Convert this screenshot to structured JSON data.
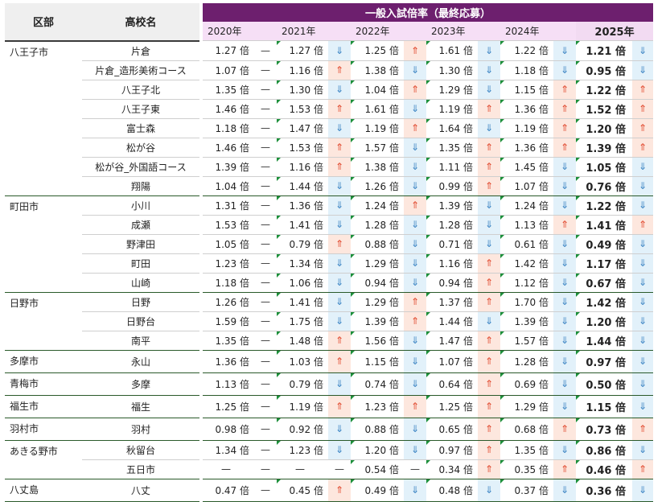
{
  "header": {
    "district": "区部",
    "school": "高校名",
    "banner": "一般入試倍率（最終応募）",
    "years": [
      "2020年",
      "2021年",
      "2022年",
      "2023年",
      "2024年",
      "2025年"
    ]
  },
  "rows": [
    {
      "district": "八王子市",
      "school": "片倉",
      "vals": [
        "1.27 倍",
        "1.27 倍",
        "1.25 倍",
        "1.61 倍",
        "1.22 倍",
        "1.21 倍"
      ],
      "arrows": [
        "—",
        "⇓",
        "⇑",
        "⇓",
        "⇓"
      ]
    },
    {
      "district": "",
      "school": "片倉_造形美術コース",
      "vals": [
        "1.07 倍",
        "1.16 倍",
        "1.38 倍",
        "1.30 倍",
        "1.18 倍",
        "0.95 倍"
      ],
      "arrows": [
        "—",
        "⇑",
        "⇓",
        "⇓",
        "⇓"
      ]
    },
    {
      "district": "",
      "school": "八王子北",
      "vals": [
        "1.35 倍",
        "1.30 倍",
        "1.04 倍",
        "1.29 倍",
        "1.15 倍",
        "1.22 倍"
      ],
      "arrows": [
        "—",
        "⇓",
        "⇑",
        "⇓",
        "⇑"
      ]
    },
    {
      "district": "",
      "school": "八王子東",
      "vals": [
        "1.46 倍",
        "1.53 倍",
        "1.61 倍",
        "1.19 倍",
        "1.36 倍",
        "1.52 倍"
      ],
      "arrows": [
        "—",
        "⇑",
        "⇓",
        "⇑",
        "⇑"
      ]
    },
    {
      "district": "",
      "school": "富士森",
      "vals": [
        "1.18 倍",
        "1.47 倍",
        "1.19 倍",
        "1.64 倍",
        "1.19 倍",
        "1.20 倍"
      ],
      "arrows": [
        "—",
        "⇓",
        "⇑",
        "⇓",
        "⇑"
      ]
    },
    {
      "district": "",
      "school": "松が谷",
      "vals": [
        "1.46 倍",
        "1.53 倍",
        "1.57 倍",
        "1.35 倍",
        "1.36 倍",
        "1.39 倍"
      ],
      "arrows": [
        "—",
        "⇑",
        "⇓",
        "⇑",
        "⇑"
      ]
    },
    {
      "district": "",
      "school": "松が谷_外国語コース",
      "vals": [
        "1.39 倍",
        "1.16 倍",
        "1.38 倍",
        "1.11 倍",
        "1.45 倍",
        "1.05 倍"
      ],
      "arrows": [
        "—",
        "⇑",
        "⇓",
        "⇑",
        "⇓"
      ]
    },
    {
      "district": "",
      "school": "翔陽",
      "vals": [
        "1.04 倍",
        "1.44 倍",
        "1.26 倍",
        "0.99 倍",
        "1.07 倍",
        "0.76 倍"
      ],
      "arrows": [
        "—",
        "⇓",
        "⇓",
        "⇑",
        "⇓"
      ]
    },
    {
      "district": "町田市",
      "school": "小川",
      "vals": [
        "1.31 倍",
        "1.36 倍",
        "1.24 倍",
        "1.39 倍",
        "1.24 倍",
        "1.22 倍"
      ],
      "arrows": [
        "—",
        "⇓",
        "⇑",
        "⇓",
        "⇓"
      ]
    },
    {
      "district": "",
      "school": "成瀬",
      "vals": [
        "1.53 倍",
        "1.41 倍",
        "1.28 倍",
        "1.28 倍",
        "1.13 倍",
        "1.41 倍"
      ],
      "arrows": [
        "—",
        "⇓",
        "⇓",
        "⇓",
        "⇑"
      ]
    },
    {
      "district": "",
      "school": "野津田",
      "vals": [
        "1.05 倍",
        "0.79 倍",
        "0.88 倍",
        "0.71 倍",
        "0.61 倍",
        "0.49 倍"
      ],
      "arrows": [
        "—",
        "⇑",
        "⇓",
        "⇓",
        "⇓"
      ]
    },
    {
      "district": "",
      "school": "町田",
      "vals": [
        "1.23 倍",
        "1.34 倍",
        "1.29 倍",
        "1.16 倍",
        "1.42 倍",
        "1.17 倍"
      ],
      "arrows": [
        "—",
        "⇓",
        "⇓",
        "⇑",
        "⇓"
      ]
    },
    {
      "district": "",
      "school": "山崎",
      "vals": [
        "1.18 倍",
        "1.06 倍",
        "0.94 倍",
        "0.94 倍",
        "1.12 倍",
        "0.67 倍"
      ],
      "arrows": [
        "—",
        "⇓",
        "⇓",
        "⇑",
        "⇓"
      ]
    },
    {
      "district": "日野市",
      "school": "日野",
      "vals": [
        "1.26 倍",
        "1.41 倍",
        "1.29 倍",
        "1.37 倍",
        "1.70 倍",
        "1.42 倍"
      ],
      "arrows": [
        "—",
        "⇓",
        "⇑",
        "⇑",
        "⇓"
      ]
    },
    {
      "district": "",
      "school": "日野台",
      "vals": [
        "1.59 倍",
        "1.75 倍",
        "1.39 倍",
        "1.44 倍",
        "1.39 倍",
        "1.20 倍"
      ],
      "arrows": [
        "—",
        "⇓",
        "⇑",
        "⇓",
        "⇓"
      ]
    },
    {
      "district": "",
      "school": "南平",
      "vals": [
        "1.35 倍",
        "1.48 倍",
        "1.56 倍",
        "1.47 倍",
        "1.57 倍",
        "1.44 倍"
      ],
      "arrows": [
        "—",
        "⇑",
        "⇓",
        "⇑",
        "⇓"
      ]
    },
    {
      "district": "多摩市",
      "school": "永山",
      "vals": [
        "1.36 倍",
        "1.03 倍",
        "1.15 倍",
        "1.07 倍",
        "1.28 倍",
        "0.97 倍"
      ],
      "arrows": [
        "—",
        "⇑",
        "⇓",
        "⇑",
        "⇓"
      ]
    },
    {
      "district": "青梅市",
      "school": "多摩",
      "vals": [
        "1.13 倍",
        "0.79 倍",
        "0.74 倍",
        "0.64 倍",
        "0.69 倍",
        "0.50 倍"
      ],
      "arrows": [
        "—",
        "⇓",
        "⇓",
        "⇑",
        "⇓"
      ]
    },
    {
      "district": "福生市",
      "school": "福生",
      "vals": [
        "1.25 倍",
        "1.19 倍",
        "1.23 倍",
        "1.25 倍",
        "1.29 倍",
        "1.15 倍"
      ],
      "arrows": [
        "—",
        "⇑",
        "⇑",
        "⇑",
        "⇓"
      ]
    },
    {
      "district": "羽村市",
      "school": "羽村",
      "vals": [
        "0.98 倍",
        "0.92 倍",
        "0.88 倍",
        "0.65 倍",
        "0.68 倍",
        "0.73 倍"
      ],
      "arrows": [
        "—",
        "⇓",
        "⇓",
        "⇑",
        "⇑"
      ]
    },
    {
      "district": "あきる野市",
      "school": "秋留台",
      "vals": [
        "1.34 倍",
        "1.23 倍",
        "1.20 倍",
        "0.97 倍",
        "1.35 倍",
        "0.86 倍"
      ],
      "arrows": [
        "—",
        "⇓",
        "⇓",
        "⇑",
        "⇓"
      ]
    },
    {
      "district": "",
      "school": "五日市",
      "vals": [
        "—",
        "—",
        "0.54 倍",
        "0.34 倍",
        "0.35 倍",
        "0.46 倍"
      ],
      "arrows": [
        "—",
        "—",
        "—",
        "⇑",
        "⇑"
      ]
    },
    {
      "district": "八丈島",
      "school": "八丈",
      "vals": [
        "0.47 倍",
        "0.45 倍",
        "0.49 倍",
        "0.48 倍",
        "0.37 倍",
        "0.36 倍"
      ],
      "arrows": [
        "—",
        "⇑",
        "⇓",
        "⇓",
        "⇓"
      ]
    }
  ]
}
